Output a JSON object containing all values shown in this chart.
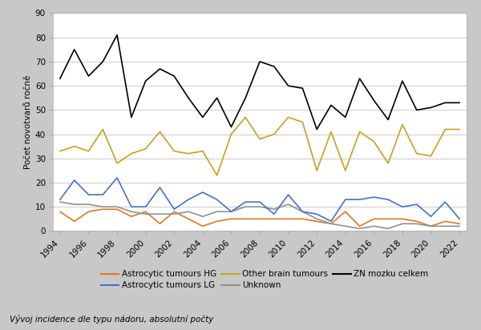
{
  "years": [
    1994,
    1995,
    1996,
    1997,
    1998,
    1999,
    2000,
    2001,
    2002,
    2003,
    2004,
    2005,
    2006,
    2007,
    2008,
    2009,
    2010,
    2011,
    2012,
    2013,
    2014,
    2015,
    2016,
    2017,
    2018,
    2019,
    2020,
    2021,
    2022
  ],
  "astrocytic_HG": [
    8,
    4,
    8,
    9,
    9,
    6,
    8,
    3,
    8,
    5,
    2,
    4,
    5,
    5,
    5,
    5,
    5,
    5,
    4,
    3,
    8,
    2,
    5,
    5,
    5,
    4,
    2,
    4,
    3
  ],
  "astrocytic_LG": [
    13,
    21,
    15,
    15,
    22,
    10,
    10,
    18,
    9,
    13,
    16,
    13,
    8,
    12,
    12,
    7,
    15,
    8,
    7,
    4,
    13,
    13,
    14,
    13,
    10,
    11,
    6,
    12,
    5
  ],
  "other_brain": [
    33,
    35,
    33,
    42,
    28,
    32,
    34,
    41,
    33,
    32,
    33,
    23,
    40,
    47,
    38,
    40,
    47,
    45,
    25,
    41,
    25,
    41,
    37,
    28,
    44,
    32,
    31,
    42,
    42
  ],
  "unknown": [
    12,
    11,
    11,
    10,
    10,
    8,
    7,
    7,
    7,
    8,
    6,
    8,
    8,
    10,
    10,
    9,
    11,
    8,
    5,
    3,
    2,
    1,
    2,
    1,
    3,
    3,
    2,
    2,
    2
  ],
  "zn_celkem": [
    63,
    75,
    64,
    70,
    81,
    47,
    62,
    67,
    64,
    55,
    47,
    55,
    43,
    55,
    70,
    68,
    60,
    59,
    42,
    52,
    47,
    63,
    54,
    46,
    62,
    50,
    51,
    53,
    53
  ],
  "color_HG": "#E07820",
  "color_LG": "#4472C4",
  "color_other": "#C8A020",
  "color_unknown": "#909090",
  "color_celkem": "#000000",
  "ylabel": "Počet novotvarů ročně",
  "ylim": [
    0,
    90
  ],
  "yticks": [
    0,
    10,
    20,
    30,
    40,
    50,
    60,
    70,
    80,
    90
  ],
  "legend_HG": "Astrocytic tumours HG",
  "legend_LG": "Astrocytic tumours LG",
  "legend_other": "Other brain tumours",
  "legend_unknown": "Unknown",
  "legend_celkem": "ZN mozku celkem",
  "footnote": "Vývoj incidence dle typu nádoru, absolutní počty",
  "background_color": "#c8c8c8",
  "plot_background": "#ffffff"
}
